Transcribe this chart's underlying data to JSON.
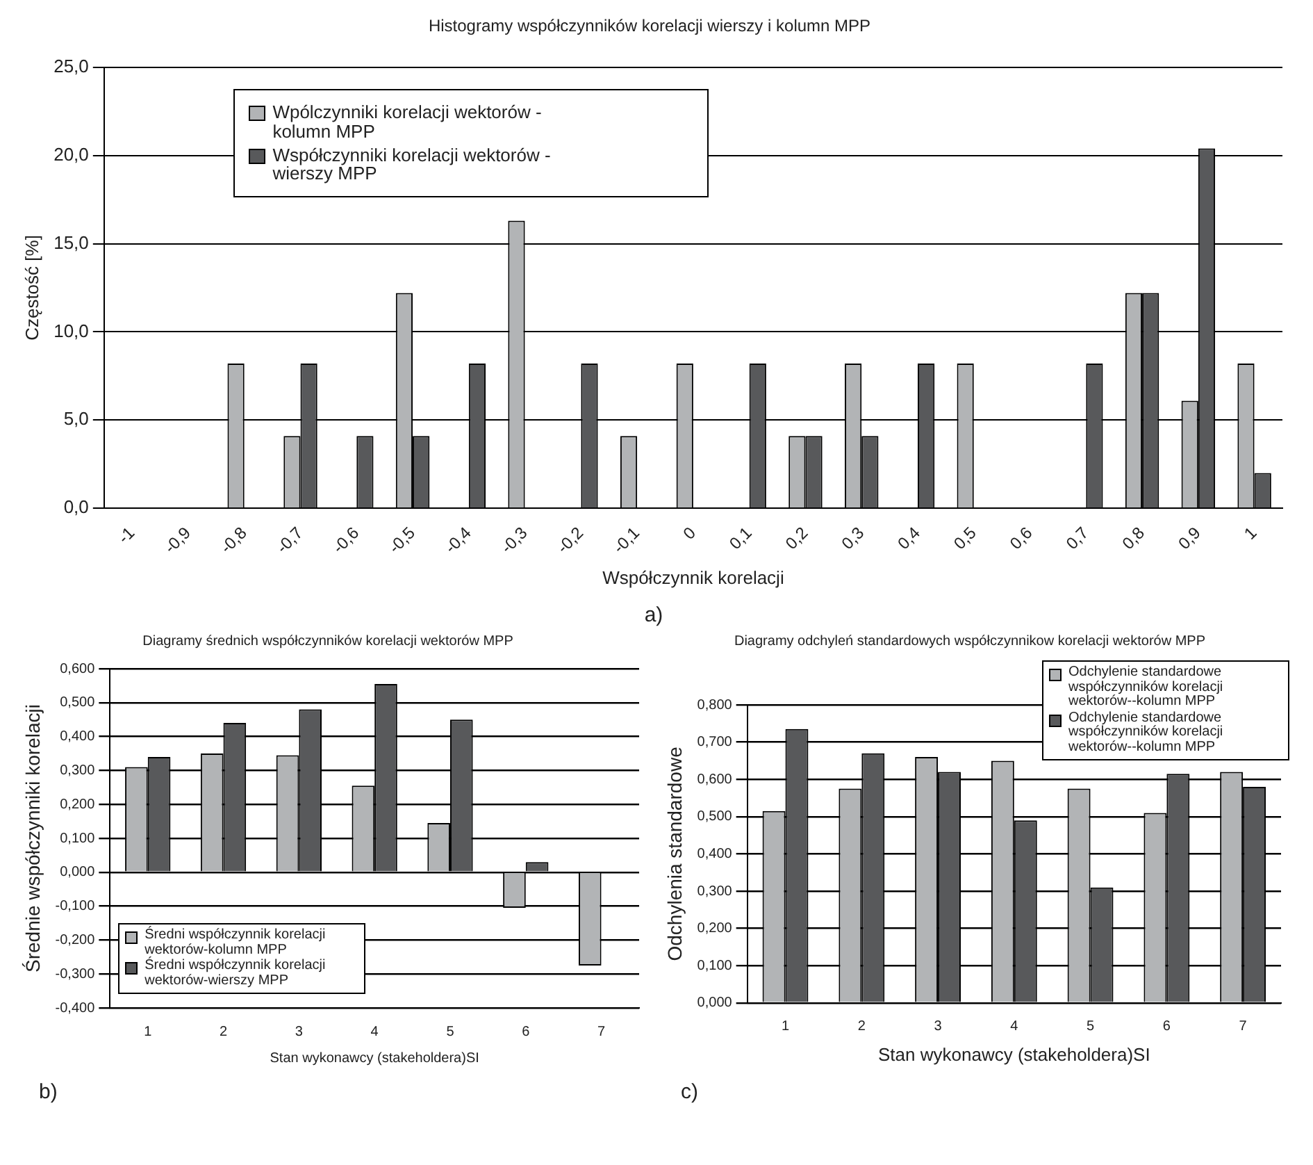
{
  "chart_data": [
    {
      "type": "bar",
      "title": "Histogramy współczynników korelacji wierszy i kolumn MPP",
      "xlabel": "Współczynnik korelacji",
      "ylabel": "Częstość [%]",
      "categories": [
        "-1",
        "-0,9",
        "-0,8",
        "-0,7",
        "-0,6",
        "-0,5",
        "-0,4",
        "-0,3",
        "-0,2",
        "-0,1",
        "0",
        "0,1",
        "0,2",
        "0,3",
        "0,4",
        "0,5",
        "0,6",
        "0,7",
        "0,8",
        "0,9",
        "1"
      ],
      "series": [
        {
          "name": "Wpólczynniki korelacji wektorów - kolumn MPP",
          "color": "#b2b4b6",
          "values": [
            0,
            0,
            8.2,
            4.1,
            0,
            12.2,
            0,
            16.3,
            0,
            4.1,
            8.2,
            0,
            4.1,
            8.2,
            0,
            8.2,
            0,
            0,
            12.2,
            6.1,
            8.2
          ]
        },
        {
          "name": "Współczynniki korelacji wektorów - wierszy MPP",
          "color": "#58595b",
          "values": [
            0,
            0,
            0,
            8.2,
            4.1,
            4.1,
            8.2,
            0,
            8.2,
            0,
            0,
            8.2,
            4.1,
            4.1,
            8.2,
            0,
            0,
            8.2,
            12.2,
            20.4,
            2.0
          ]
        }
      ],
      "ylim": [
        0,
        25
      ],
      "yticks": [
        {
          "value": 0,
          "label": "0,0"
        },
        {
          "value": 5,
          "label": "5,0"
        },
        {
          "value": 10,
          "label": "10,0"
        },
        {
          "value": 15,
          "label": "15,0"
        },
        {
          "value": 20,
          "label": "20,0"
        },
        {
          "value": 25,
          "label": "25,0"
        }
      ],
      "grid": "y",
      "legend": "top left",
      "annotations": [
        "a)"
      ]
    },
    {
      "type": "bar",
      "title": "Diagramy średnich współczynników korelacji wektorów MPP",
      "xlabel": "Stan wykonawcy (stakeholdera)SI",
      "ylabel": "Średnie współczynniki korelacji",
      "categories": [
        "1",
        "2",
        "3",
        "4",
        "5",
        "6",
        "7"
      ],
      "series": [
        {
          "name": "Średni współczynnik korelacji wektorów-kolumn MPP",
          "color": "#b2b4b6",
          "values": [
            0.31,
            0.35,
            0.345,
            0.255,
            0.145,
            -0.105,
            -0.275
          ]
        },
        {
          "name": "Średni współczynnik korelacji wektorów-wierszy MPP",
          "color": "#58595b",
          "values": [
            0.34,
            0.44,
            0.48,
            0.555,
            0.45,
            0.03,
            null
          ]
        }
      ],
      "ylim": [
        -0.4,
        0.6
      ],
      "yticks": [
        {
          "value": -0.4,
          "label": "-0,400"
        },
        {
          "value": -0.3,
          "label": "-0,300"
        },
        {
          "value": -0.2,
          "label": "-0,200"
        },
        {
          "value": -0.1,
          "label": "-0,100"
        },
        {
          "value": 0,
          "label": "0,000"
        },
        {
          "value": 0.1,
          "label": "0,100"
        },
        {
          "value": 0.2,
          "label": "0,200"
        },
        {
          "value": 0.3,
          "label": "0,300"
        },
        {
          "value": 0.4,
          "label": "0,400"
        },
        {
          "value": 0.5,
          "label": "0,500"
        },
        {
          "value": 0.6,
          "label": "0,600"
        }
      ],
      "grid": "y",
      "legend": "bottom left",
      "annotations": [
        "b)"
      ]
    },
    {
      "type": "bar",
      "title": "Diagramy odchyleń standardowych współczynnikow korelacji wektorów MPP",
      "xlabel": "Stan wykonawcy (stakeholdera)SI",
      "ylabel": "Odchylenia standardowe",
      "categories": [
        "1",
        "2",
        "3",
        "4",
        "5",
        "6",
        "7"
      ],
      "series": [
        {
          "name": "Odchylenie standardowe współczynników korelacji wektorów--kolumn MPP",
          "color": "#b2b4b6",
          "values": [
            0.515,
            0.575,
            0.66,
            0.65,
            0.575,
            0.51,
            0.62
          ]
        },
        {
          "name": "Odchylenie standardowe współczynników korelacji wektorów--kolumn MPP",
          "color": "#58595b",
          "values": [
            0.735,
            0.67,
            0.62,
            0.49,
            0.31,
            0.615,
            0.58
          ]
        }
      ],
      "ylim": [
        0,
        0.8
      ],
      "yticks": [
        {
          "value": 0,
          "label": "0,000"
        },
        {
          "value": 0.1,
          "label": "0,100"
        },
        {
          "value": 0.2,
          "label": "0,200"
        },
        {
          "value": 0.3,
          "label": "0,300"
        },
        {
          "value": 0.4,
          "label": "0,400"
        },
        {
          "value": 0.5,
          "label": "0,500"
        },
        {
          "value": 0.6,
          "label": "0,600"
        },
        {
          "value": 0.7,
          "label": "0,700"
        },
        {
          "value": 0.8,
          "label": "0,800"
        }
      ],
      "grid": "y",
      "legend": "top right",
      "annotations": [
        "c)"
      ]
    }
  ]
}
